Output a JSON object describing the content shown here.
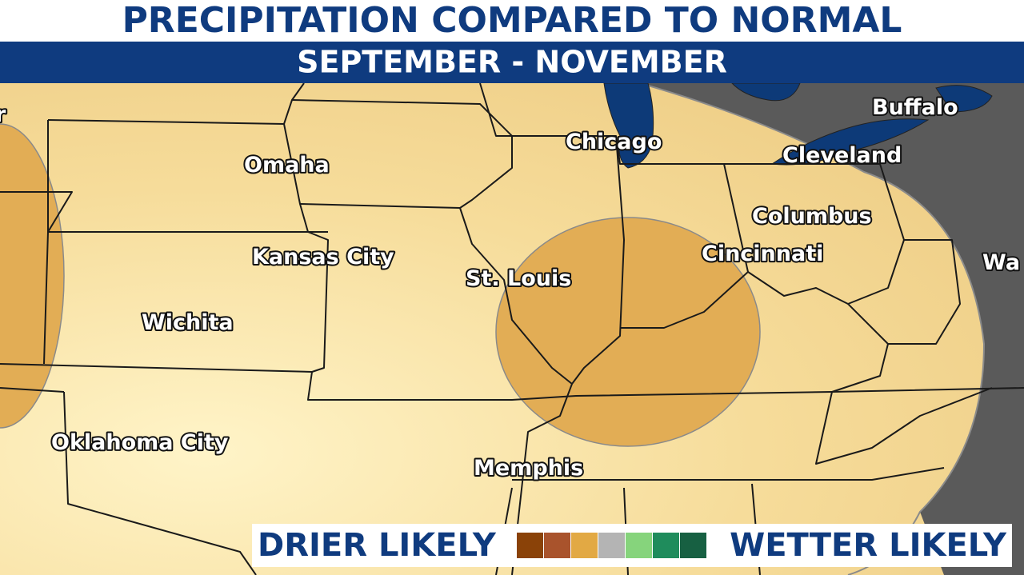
{
  "header": {
    "title": "PRECIPITATION COMPARED TO NORMAL",
    "subtitle": "SEPTEMBER - NOVEMBER"
  },
  "cities": [
    {
      "label": "r"
    },
    {
      "label": "Omaha"
    },
    {
      "label": "Chicago"
    },
    {
      "label": "Buffalo"
    },
    {
      "label": "Cleveland"
    },
    {
      "label": "Columbus"
    },
    {
      "label": "Kansas City"
    },
    {
      "label": "Cincinnati"
    },
    {
      "label": "St. Louis"
    },
    {
      "label": "Wa"
    },
    {
      "label": "Wichita"
    },
    {
      "label": "Oklahoma City"
    },
    {
      "label": "Memphis"
    }
  ],
  "legend": {
    "left": "DRIER LIKELY",
    "right": "WETTER LIKELY"
  }
}
